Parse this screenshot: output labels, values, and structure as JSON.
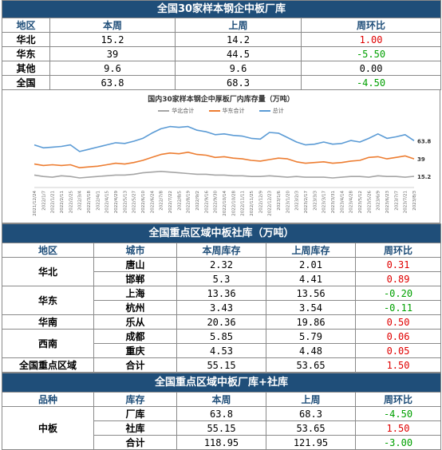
{
  "section1": {
    "title": "全国30家样本钢企中板厂库",
    "headers": [
      "地区",
      "本周",
      "上周",
      "周环比"
    ],
    "rows": [
      {
        "region": "华北",
        "this_week": "15.2",
        "last_week": "14.2",
        "change": "1.00"
      },
      {
        "region": "华东",
        "this_week": "39",
        "last_week": "44.5",
        "change": "-5.50"
      },
      {
        "region": "其他",
        "this_week": "9.6",
        "last_week": "9.6",
        "change": "0.00"
      },
      {
        "region": "全国",
        "this_week": "63.8",
        "last_week": "68.3",
        "change": "-4.50"
      }
    ]
  },
  "chart_data": {
    "type": "line",
    "title": "国内30家样本钢企中厚板厂内库存量（万吨）",
    "xlabel": "",
    "ylabel": "",
    "x": [
      "2021/12/24",
      "2022/1/7",
      "2022/1/21",
      "2022/2/11",
      "2022/2/25",
      "2022/3/4",
      "2022/3/18",
      "2022/4/1",
      "2022/4/15",
      "2022/4/29",
      "2022/5/13",
      "2022/5/27",
      "2022/6/10",
      "2022/6/24",
      "2022/7/8",
      "2022/7/22",
      "2022/8/5",
      "2022/8/19",
      "2022/9/2",
      "2022/9/16",
      "2022/9/30",
      "2022/10/14",
      "2022/10/28",
      "2022/11/11",
      "2022/11/25",
      "2022/12/9",
      "2022/12/23",
      "2023/1/6",
      "2023/1/20",
      "2023/2/3",
      "2023/2/17",
      "2023/3/3",
      "2023/3/17",
      "2023/3/31",
      "2023/4/14",
      "2023/4/28",
      "2023/5/12",
      "2023/5/26",
      "2023/6/9",
      "2023/6/23",
      "2023/7/7",
      "2023/7/21",
      "2023/8/3"
    ],
    "series": [
      {
        "name": "华北合计",
        "color": "#a5a5a5",
        "values": [
          17,
          15,
          14,
          16,
          15,
          13,
          14,
          15,
          16,
          17,
          17,
          18,
          20,
          21,
          22,
          21,
          20,
          19,
          18,
          18,
          17,
          17,
          16,
          16,
          15,
          15,
          16,
          15,
          14,
          15,
          14,
          14,
          14,
          13,
          14,
          15,
          15,
          14,
          16,
          15,
          15,
          14,
          15.2
        ]
      },
      {
        "name": "华东合计",
        "color": "#ed7d31",
        "values": [
          32,
          30,
          31,
          30,
          31,
          27,
          28,
          29,
          31,
          33,
          32,
          34,
          37,
          41,
          45,
          47,
          46,
          48,
          45,
          44,
          41,
          42,
          40,
          39,
          37,
          36,
          38,
          40,
          39,
          35,
          33,
          34,
          35,
          33,
          34,
          36,
          37,
          41,
          42,
          39,
          41,
          43,
          39
        ]
      },
      {
        "name": "总计",
        "color": "#5b9bd5",
        "values": [
          58,
          54,
          55,
          56,
          58,
          49,
          52,
          55,
          58,
          61,
          60,
          63,
          67,
          74,
          80,
          83,
          82,
          83,
          78,
          76,
          72,
          73,
          71,
          70,
          67,
          66,
          75,
          74,
          68,
          62,
          58,
          59,
          62,
          59,
          60,
          64,
          62,
          67,
          73,
          67,
          69,
          72,
          63.8
        ]
      }
    ],
    "ylim": [
      0,
      100
    ],
    "end_labels": [
      "63.8",
      "39",
      "15.2"
    ]
  },
  "section2": {
    "title": "全国重点区域中板社库（万吨）",
    "headers": [
      "地区",
      "城市",
      "本周库存",
      "上周库存",
      "周环比"
    ],
    "rows": [
      {
        "region": "华北",
        "city": "唐山",
        "this_week": "2.32",
        "last_week": "2.01",
        "change": "0.31"
      },
      {
        "region": "",
        "city": "邯郸",
        "this_week": "5.3",
        "last_week": "4.41",
        "change": "0.89"
      },
      {
        "region": "华东",
        "city": "上海",
        "this_week": "13.36",
        "last_week": "13.56",
        "change": "-0.20"
      },
      {
        "region": "",
        "city": "杭州",
        "this_week": "3.43",
        "last_week": "3.54",
        "change": "-0.11"
      },
      {
        "region": "华南",
        "city": "乐从",
        "this_week": "20.36",
        "last_week": "19.86",
        "change": "0.50"
      },
      {
        "region": "西南",
        "city": "成都",
        "this_week": "5.85",
        "last_week": "5.79",
        "change": "0.06"
      },
      {
        "region": "",
        "city": "重庆",
        "this_week": "4.53",
        "last_week": "4.48",
        "change": "0.05"
      },
      {
        "region": "全国重点区域",
        "city": "合计",
        "this_week": "55.15",
        "last_week": "53.65",
        "change": "1.50"
      }
    ]
  },
  "section3": {
    "title": "全国重点区域中板厂库+社库",
    "headers": [
      "品种",
      "库存",
      "本周",
      "上周",
      "周环比"
    ],
    "product": "中板",
    "rows": [
      {
        "stock": "厂库",
        "this_week": "63.8",
        "last_week": "68.3",
        "change": "-4.50"
      },
      {
        "stock": "社库",
        "this_week": "55.15",
        "last_week": "53.65",
        "change": "1.50"
      },
      {
        "stock": "合计",
        "this_week": "118.95",
        "last_week": "121.95",
        "change": "-3.00"
      }
    ]
  }
}
